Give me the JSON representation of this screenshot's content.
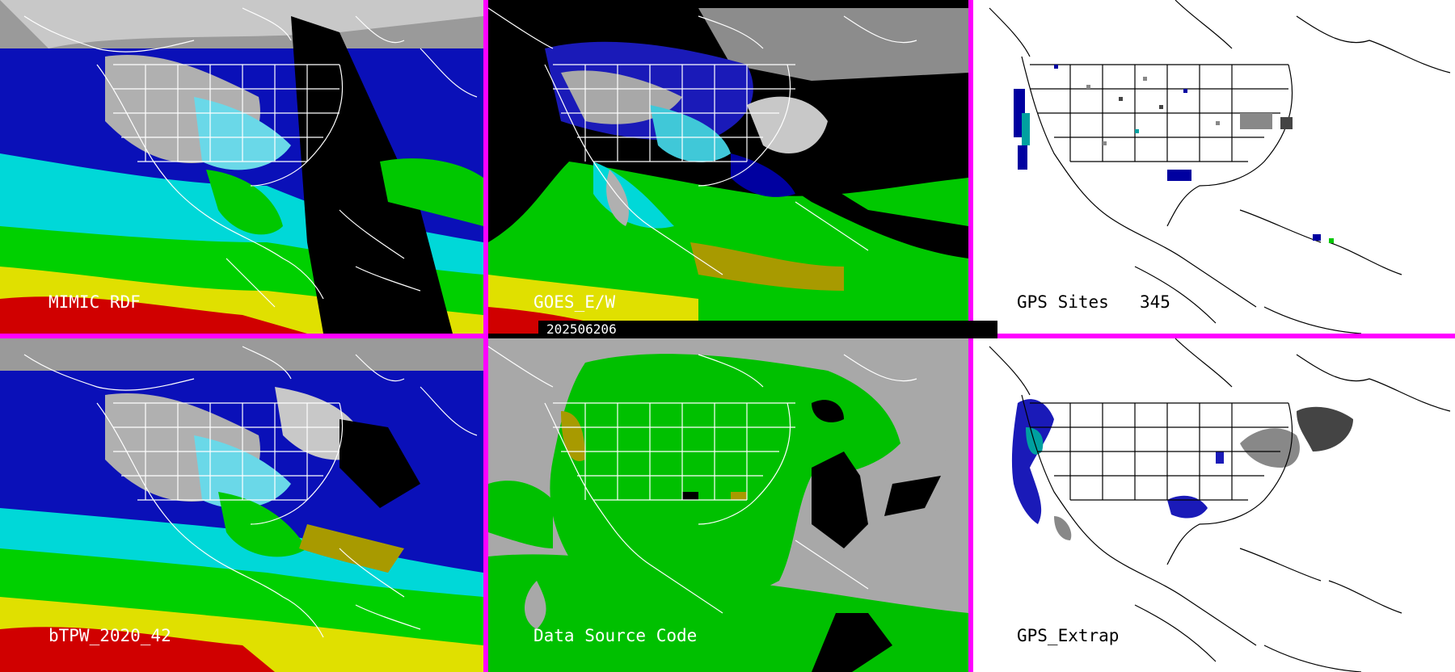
{
  "panels": {
    "mimic": {
      "label": "MIMIC RDF"
    },
    "goes": {
      "label": "GOES_E/W"
    },
    "gps_sites": {
      "label": "GPS Sites",
      "count": "345"
    },
    "btpw": {
      "label": "bTPW_2020_42"
    },
    "data_source": {
      "label": "Data Source Code"
    },
    "gps_extrap": {
      "label": "GPS_Extrap"
    }
  },
  "timestamp": "202506206",
  "colors": {
    "divider": "#ff00ff",
    "tpw_low": "#0000a0",
    "tpw_mid": "#00d8d8",
    "tpw_high": "#00d800",
    "tpw_higher": "#e8e800",
    "tpw_max": "#d80000",
    "code_green": "#00c800",
    "code_olive": "#a89a00",
    "code_gray": "#a8a8a8"
  }
}
